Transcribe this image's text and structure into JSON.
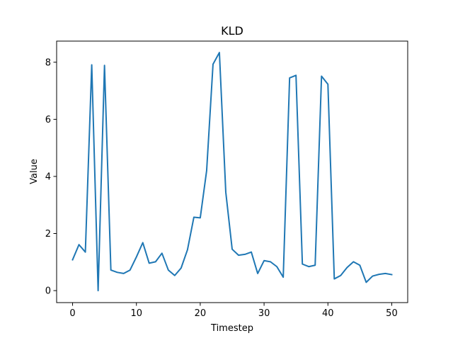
{
  "chart_data": {
    "type": "line",
    "title": "KLD",
    "xlabel": "Timestep",
    "ylabel": "Value",
    "xlim": [
      -2.5,
      52.5
    ],
    "ylim": [
      -0.42,
      8.74
    ],
    "xticks": [
      0,
      10,
      20,
      30,
      40,
      50
    ],
    "yticks": [
      0,
      2,
      4,
      6,
      8
    ],
    "grid": false,
    "series": [
      {
        "color": "#1f77b4",
        "x": [
          0,
          1,
          2,
          3,
          4,
          5,
          6,
          7,
          8,
          9,
          10,
          11,
          12,
          13,
          14,
          15,
          16,
          17,
          18,
          19,
          20,
          21,
          22,
          23,
          24,
          25,
          26,
          27,
          28,
          29,
          30,
          31,
          32,
          33,
          34,
          35,
          36,
          37,
          38,
          39,
          40,
          41,
          42,
          43,
          44,
          45,
          46,
          47,
          48,
          49,
          50
        ],
        "values": [
          1.08,
          1.61,
          1.35,
          7.91,
          0.0,
          7.89,
          0.72,
          0.64,
          0.6,
          0.72,
          1.18,
          1.68,
          0.96,
          1.01,
          1.31,
          0.72,
          0.53,
          0.79,
          1.43,
          2.57,
          2.55,
          4.2,
          7.93,
          8.34,
          3.45,
          1.45,
          1.24,
          1.27,
          1.35,
          0.6,
          1.05,
          1.01,
          0.84,
          0.47,
          7.45,
          7.54,
          0.93,
          0.84,
          0.89,
          7.51,
          7.23,
          0.41,
          0.53,
          0.81,
          1.01,
          0.89,
          0.29,
          0.51,
          0.57,
          0.6,
          0.56
        ]
      }
    ]
  }
}
